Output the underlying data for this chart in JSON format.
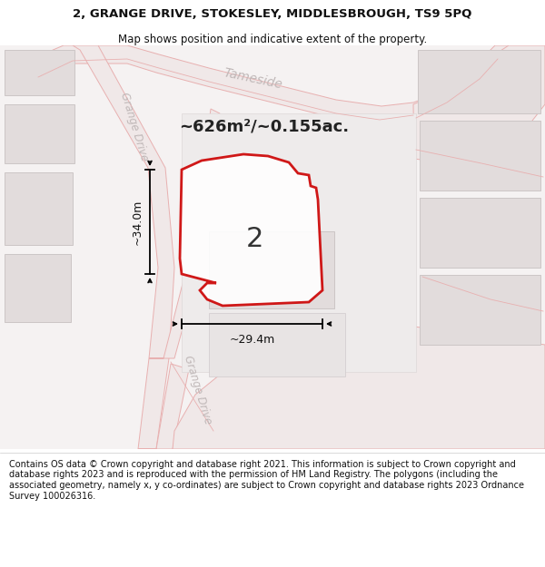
{
  "title_line1": "2, GRANGE DRIVE, STOKESLEY, MIDDLESBROUGH, TS9 5PQ",
  "title_line2": "Map shows position and indicative extent of the property.",
  "footer": "Contains OS data © Crown copyright and database right 2021. This information is subject to Crown copyright and database rights 2023 and is reproduced with the permission of HM Land Registry. The polygons (including the associated geometry, namely x, y co-ordinates) are subject to Crown copyright and database rights 2023 Ordnance Survey 100026316.",
  "area_text": "~626m²/~0.155ac.",
  "dim_vertical": "~34.0m",
  "dim_horizontal": "~29.4m",
  "property_label": "2",
  "street_tameside": "Tameside",
  "street_grange_upper": "Grange Drive",
  "street_grange_lower": "Grange Drive",
  "map_bg": "#f5f2f2",
  "road_fill": "#f0e8e8",
  "road_edge": "#e8b0b0",
  "bld_fill": "#e2dcdc",
  "bld_edge": "#ccc6c6",
  "prop_fill": "#ffffff",
  "prop_edge": "#cc0000",
  "prop_lw": 2.0,
  "ann_color": "#111111",
  "street_color": "#c0b8b8",
  "title_fs": 9.5,
  "subtitle_fs": 8.5,
  "area_fs": 13,
  "dim_fs": 9,
  "street_fs": 10,
  "grange_fs": 8.5,
  "prop_label_fs": 22,
  "footer_fs": 7.0
}
